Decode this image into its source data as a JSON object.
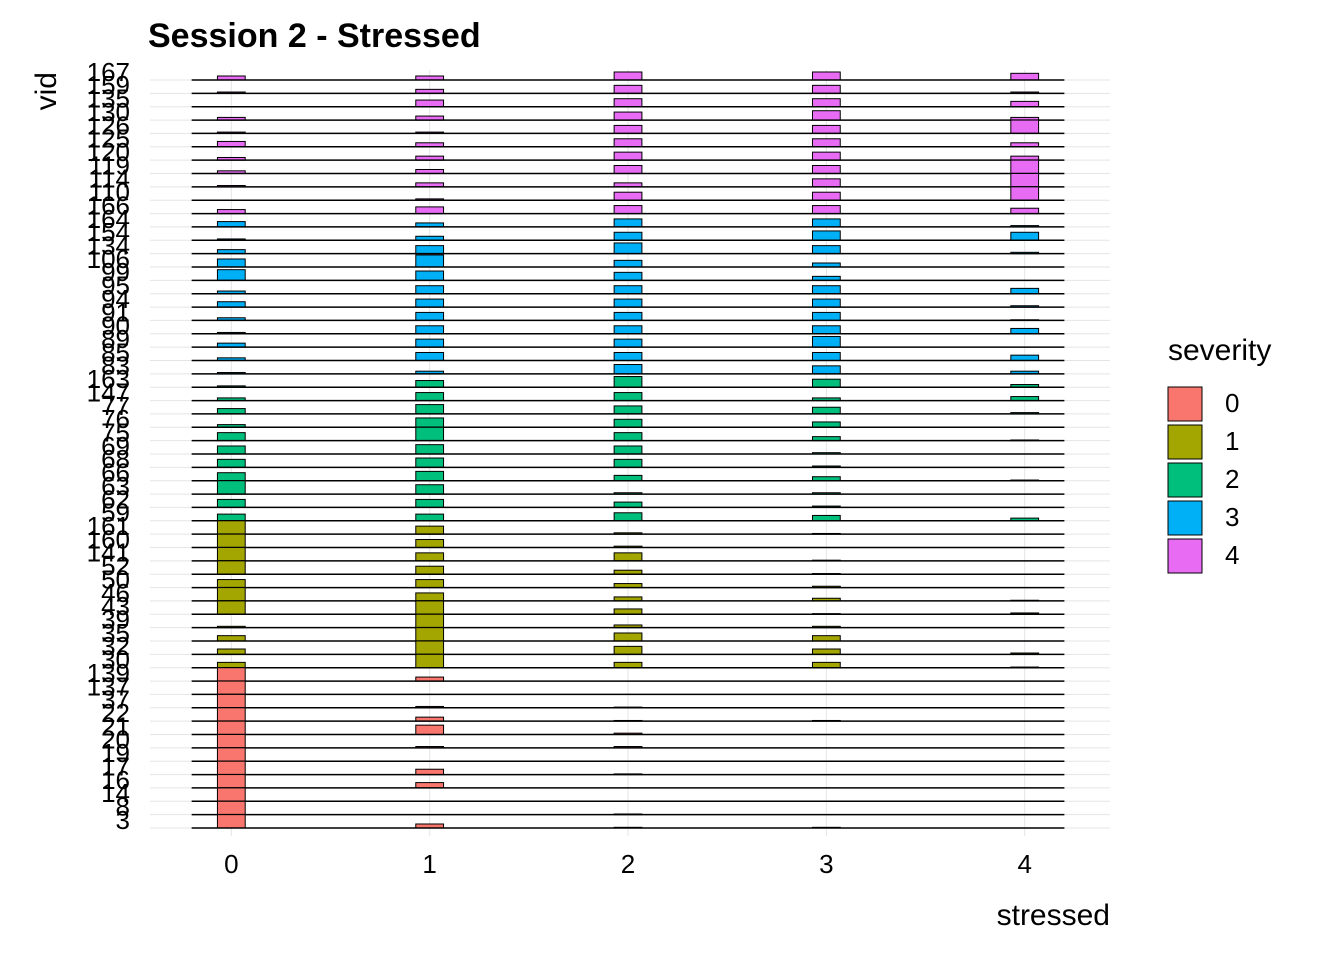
{
  "chart_data": {
    "type": "ridgeline-histogram",
    "title": "Session 2 - Stressed",
    "x_label": "stressed",
    "y_label": "vid",
    "xlim": [
      -0.41,
      4.43
    ],
    "xticks": [
      0,
      1,
      2,
      3,
      4
    ],
    "grid": true,
    "legend": {
      "title": "severity",
      "items": [
        {
          "name": "0",
          "color": "#F8766D"
        },
        {
          "name": "1",
          "color": "#A3A500"
        },
        {
          "name": "2",
          "color": "#00BF7D"
        },
        {
          "name": "3",
          "color": "#00B0F6"
        },
        {
          "name": "4",
          "color": "#E76BF3"
        }
      ]
    },
    "categories": [
      "3",
      "8",
      "14",
      "16",
      "17",
      "19",
      "20",
      "21",
      "22",
      "37",
      "137",
      "139",
      "30",
      "32",
      "35",
      "39",
      "43",
      "46",
      "50",
      "52",
      "141",
      "160",
      "161",
      "59",
      "62",
      "63",
      "66",
      "68",
      "69",
      "75",
      "76",
      "77",
      "147",
      "163",
      "83",
      "85",
      "89",
      "90",
      "91",
      "94",
      "95",
      "99",
      "106",
      "134",
      "154",
      "164",
      "166",
      "110",
      "114",
      "119",
      "120",
      "125",
      "126",
      "130",
      "135",
      "159",
      "167"
    ],
    "severity": [
      0,
      0,
      0,
      0,
      0,
      0,
      0,
      0,
      0,
      0,
      0,
      0,
      1,
      1,
      1,
      1,
      1,
      1,
      1,
      1,
      1,
      1,
      1,
      2,
      2,
      2,
      2,
      2,
      2,
      2,
      2,
      2,
      2,
      2,
      3,
      3,
      3,
      3,
      3,
      3,
      3,
      3,
      3,
      3,
      3,
      3,
      4,
      4,
      4,
      4,
      4,
      4,
      4,
      4,
      4,
      4,
      4
    ],
    "values": [
      [
        1,
        0.3,
        0.05,
        0.05,
        0
      ],
      [
        1,
        0,
        0.05,
        0,
        0
      ],
      [
        1,
        0,
        0,
        0,
        0
      ],
      [
        1,
        0.4,
        0,
        0,
        0
      ],
      [
        1,
        0.4,
        0.05,
        0,
        0
      ],
      [
        1,
        0,
        0,
        0,
        0
      ],
      [
        1,
        0.1,
        0.1,
        0,
        0
      ],
      [
        1,
        0.7,
        0.1,
        0,
        0
      ],
      [
        1,
        0.3,
        0.05,
        0.05,
        0
      ],
      [
        1,
        0.1,
        0.05,
        0,
        0
      ],
      [
        1,
        0,
        0,
        0,
        0
      ],
      [
        1,
        0.3,
        0,
        0,
        0
      ],
      [
        0.4,
        1,
        0.4,
        0.4,
        0.05
      ],
      [
        0.4,
        1,
        0.6,
        0.4,
        0.1
      ],
      [
        0.4,
        1,
        0.6,
        0.4,
        0
      ],
      [
        0.1,
        1,
        0.2,
        0.1,
        0
      ],
      [
        1,
        1,
        0.4,
        0.05,
        0.1
      ],
      [
        1,
        0.6,
        0.3,
        0.2,
        0.05
      ],
      [
        0.6,
        0.6,
        0.3,
        0.1,
        0
      ],
      [
        1,
        0.6,
        0.3,
        0.05,
        0
      ],
      [
        1,
        0.6,
        0.6,
        0.05,
        0
      ],
      [
        1,
        0.6,
        0.1,
        0,
        0
      ],
      [
        1,
        0.6,
        0.1,
        0.05,
        0
      ],
      [
        0.5,
        0.5,
        0.6,
        0.4,
        0.2
      ],
      [
        0.6,
        0.6,
        0.4,
        0.1,
        0
      ],
      [
        1,
        0.7,
        0.1,
        0.1,
        0
      ],
      [
        0.6,
        0.7,
        0.4,
        0.3,
        0.05
      ],
      [
        0.6,
        0.7,
        0.6,
        0.1,
        0
      ],
      [
        0.6,
        0.7,
        0.6,
        0.1,
        0
      ],
      [
        0.6,
        1,
        0.6,
        0.3,
        0.05
      ],
      [
        0.2,
        0.7,
        0.6,
        0.4,
        0
      ],
      [
        0.4,
        0.7,
        0.6,
        0.5,
        0.1
      ],
      [
        0.2,
        0.6,
        0.6,
        0.2,
        0.3
      ],
      [
        0.1,
        0.5,
        0.8,
        0.6,
        0.2
      ],
      [
        0.1,
        0.2,
        0.7,
        0.6,
        0.2
      ],
      [
        0.2,
        0.6,
        0.6,
        0.6,
        0.4
      ],
      [
        0.3,
        0.6,
        0.6,
        0.8,
        0
      ],
      [
        0.1,
        0.6,
        0.6,
        0.6,
        0.4
      ],
      [
        0.2,
        0.6,
        0.6,
        0.6,
        0.05
      ],
      [
        0.4,
        0.6,
        0.6,
        0.6,
        0.1
      ],
      [
        0.2,
        0.6,
        0.6,
        0.6,
        0.4
      ],
      [
        0.8,
        0.7,
        0.6,
        0.3,
        0
      ],
      [
        0.6,
        0.9,
        0.5,
        0.3,
        0
      ],
      [
        0.3,
        0.6,
        0.8,
        0.6,
        0.1
      ],
      [
        0.1,
        0.3,
        0.6,
        0.7,
        0.6
      ],
      [
        0.4,
        0.3,
        0.6,
        0.6,
        0.1
      ],
      [
        0.3,
        0.5,
        0.6,
        0.6,
        0.4
      ],
      [
        0,
        0.1,
        0.6,
        0.6,
        1
      ],
      [
        0.1,
        0.3,
        0.3,
        0.6,
        1
      ],
      [
        0.2,
        0.3,
        0.6,
        0.6,
        1
      ],
      [
        0.2,
        0.3,
        0.6,
        0.6,
        0.3
      ],
      [
        0.4,
        0.3,
        0.6,
        0.6,
        0.3
      ],
      [
        0.1,
        0.1,
        0.6,
        0.6,
        1
      ],
      [
        0.2,
        0.3,
        0.6,
        0.7,
        0.2
      ],
      [
        0,
        0.5,
        0.6,
        0.6,
        0.4
      ],
      [
        0.1,
        0.3,
        0.6,
        0.6,
        0.1
      ],
      [
        0.3,
        0.3,
        0.6,
        0.6,
        0.5
      ]
    ]
  }
}
